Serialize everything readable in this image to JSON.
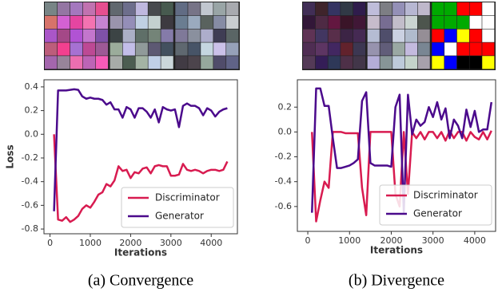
{
  "chart_data": [
    {
      "type": "line",
      "caption": "(a) Convergence",
      "xlabel": "Iterations",
      "ylabel": "Loss",
      "x": [
        100,
        200,
        300,
        400,
        500,
        600,
        700,
        800,
        900,
        1000,
        1100,
        1200,
        1300,
        1400,
        1500,
        1600,
        1700,
        1800,
        1900,
        2000,
        2100,
        2200,
        2300,
        2400,
        2500,
        2600,
        2700,
        2800,
        2900,
        3000,
        3100,
        3200,
        3300,
        3400,
        3500,
        3600,
        3700,
        3800,
        3900,
        4000,
        4100,
        4200,
        4300,
        4400
      ],
      "series": [
        {
          "name": "Discriminator",
          "color": "#d81b50",
          "values": [
            0.0,
            -0.72,
            -0.73,
            -0.7,
            -0.74,
            -0.72,
            -0.69,
            -0.63,
            -0.6,
            -0.62,
            -0.57,
            -0.51,
            -0.49,
            -0.42,
            -0.44,
            -0.39,
            -0.27,
            -0.31,
            -0.3,
            -0.37,
            -0.32,
            -0.33,
            -0.29,
            -0.28,
            -0.33,
            -0.27,
            -0.26,
            -0.27,
            -0.27,
            -0.35,
            -0.35,
            -0.34,
            -0.25,
            -0.3,
            -0.31,
            -0.3,
            -0.31,
            -0.33,
            -0.31,
            -0.3,
            -0.3,
            -0.31,
            -0.3,
            -0.23
          ]
        },
        {
          "name": "Generator",
          "color": "#4b0a8c",
          "values": [
            -0.65,
            0.37,
            0.37,
            0.37,
            0.375,
            0.38,
            0.375,
            0.32,
            0.3,
            0.31,
            0.3,
            0.3,
            0.29,
            0.25,
            0.27,
            0.21,
            0.21,
            0.14,
            0.23,
            0.21,
            0.14,
            0.22,
            0.22,
            0.19,
            0.14,
            0.21,
            0.1,
            0.23,
            0.21,
            0.2,
            0.21,
            0.06,
            0.24,
            0.26,
            0.24,
            0.24,
            0.22,
            0.16,
            0.22,
            0.2,
            0.15,
            0.19,
            0.21,
            0.22
          ]
        }
      ],
      "xlim": [
        -150,
        4650
      ],
      "xticks": [
        0,
        1000,
        2000,
        3000,
        4000
      ],
      "ylim": [
        -0.84,
        0.46
      ],
      "yticks": [
        0.4,
        0.2,
        {
          "value": 0,
          "label": "0.0"
        },
        -0.2,
        -0.4,
        -0.6,
        -0.8
      ],
      "grid": false,
      "legend": "lower right"
    },
    {
      "type": "line",
      "caption": "(b) Divergence",
      "xlabel": "Iterations",
      "x": [
        100,
        200,
        300,
        400,
        500,
        600,
        700,
        800,
        900,
        1000,
        1100,
        1200,
        1300,
        1400,
        1500,
        1600,
        1700,
        1800,
        1900,
        2000,
        2100,
        2200,
        2300,
        2400,
        2500,
        2600,
        2700,
        2800,
        2900,
        3000,
        3100,
        3200,
        3300,
        3400,
        3500,
        3600,
        3700,
        3800,
        3900,
        4000,
        4100,
        4200,
        4300,
        4400
      ],
      "series": [
        {
          "name": "Discriminator",
          "color": "#d81b50",
          "values": [
            0.0,
            -0.72,
            -0.55,
            -0.4,
            -0.45,
            0.0,
            0.0,
            0.0,
            -0.01,
            -0.01,
            -0.01,
            -0.01,
            -0.45,
            -0.67,
            0.0,
            0.0,
            0.0,
            0.0,
            0.0,
            0.0,
            -0.5,
            -0.6,
            0.0,
            -0.5,
            0.0,
            -0.05,
            0.0,
            -0.06,
            0.0,
            0.0,
            -0.05,
            0.0,
            -0.07,
            0.01,
            -0.05,
            0.0,
            0.0,
            -0.07,
            0.0,
            -0.04,
            -0.06,
            0.0,
            -0.06,
            0.01
          ]
        },
        {
          "name": "Generator",
          "color": "#4b0a8c",
          "values": [
            -0.65,
            0.35,
            0.35,
            0.21,
            0.21,
            -0.05,
            -0.29,
            -0.29,
            -0.28,
            -0.27,
            -0.25,
            -0.22,
            0.25,
            0.32,
            -0.25,
            -0.27,
            -0.27,
            -0.27,
            -0.27,
            -0.28,
            0.2,
            0.3,
            -0.65,
            0.3,
            -0.02,
            0.1,
            0.05,
            0.08,
            0.2,
            0.12,
            0.24,
            0.1,
            0.19,
            -0.05,
            0.1,
            0.05,
            -0.05,
            0.18,
            0.04,
            0.17,
            0.0,
            0.02,
            0.02,
            0.24
          ]
        }
      ],
      "xlim": [
        -250,
        4500
      ],
      "xticks": [
        0,
        1000,
        2000,
        3000,
        4000
      ],
      "ylim": [
        -0.8,
        0.42
      ],
      "yticks": [
        0.2,
        {
          "value": 0,
          "label": "0.0"
        },
        -0.2,
        -0.4,
        -0.6
      ],
      "grid": false,
      "legend": "lower right"
    }
  ]
}
